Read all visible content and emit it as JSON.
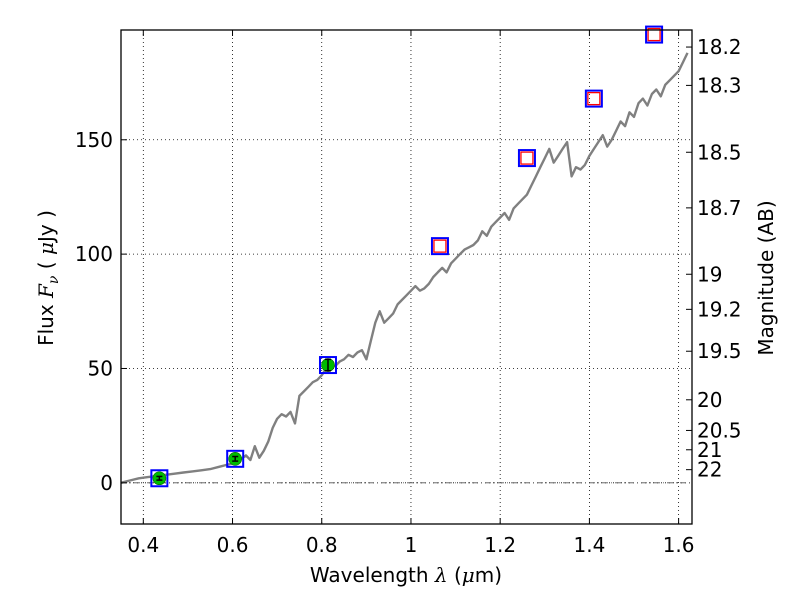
{
  "chart_data": {
    "type": "line",
    "title": "",
    "xlabel": "Wavelength  λ (μm)",
    "xlabel_parts": {
      "prefix": "Wavelength  ",
      "symbol": "λ",
      "unit_open": " (",
      "unit_mu": "μ",
      "unit_rest": "m)"
    },
    "ylabel": "Flux  Fν  ( μJy )",
    "ylabel_parts": {
      "prefix": "Flux  ",
      "symbol": "F",
      "sub": "ν",
      "open": "  ( ",
      "mu": "μ",
      "rest": "Jy )"
    },
    "ylabel_right": "Magnitude (AB)",
    "xlim": [
      0.35,
      1.63
    ],
    "ylim": [
      -18,
      198
    ],
    "grid": true,
    "x_ticks": [
      0.4,
      0.6,
      0.8,
      1.0,
      1.2,
      1.4,
      1.6
    ],
    "x_tick_labels": [
      "0.4",
      "0.6",
      "0.8",
      "1",
      "1.2",
      "1.4",
      "1.6"
    ],
    "y_ticks": [
      0,
      50,
      100,
      150
    ],
    "y_tick_labels": [
      "0",
      "50",
      "100",
      "150"
    ],
    "right_ticks": [
      {
        "label": "18.2",
        "mag": 18.2
      },
      {
        "label": "18.3",
        "mag": 18.3
      },
      {
        "label": "18.5",
        "mag": 18.5
      },
      {
        "label": "18.7",
        "mag": 18.7
      },
      {
        "label": "19",
        "mag": 19.0
      },
      {
        "label": "19.2",
        "mag": 19.2
      },
      {
        "label": "19.5",
        "mag": 19.5
      },
      {
        "label": "20",
        "mag": 20.0
      },
      {
        "label": "20.5",
        "mag": 20.5
      },
      {
        "label": "21",
        "mag": 21.0
      },
      {
        "label": "22",
        "mag": 22.0
      }
    ],
    "series": [
      {
        "kind": "spectrum",
        "color": "#808080",
        "x": [
          0.35,
          0.37,
          0.39,
          0.41,
          0.43,
          0.45,
          0.47,
          0.49,
          0.51,
          0.53,
          0.55,
          0.57,
          0.59,
          0.61,
          0.63,
          0.64,
          0.65,
          0.66,
          0.67,
          0.68,
          0.69,
          0.7,
          0.71,
          0.72,
          0.73,
          0.74,
          0.75,
          0.76,
          0.77,
          0.78,
          0.79,
          0.8,
          0.81,
          0.82,
          0.83,
          0.84,
          0.85,
          0.86,
          0.87,
          0.88,
          0.89,
          0.9,
          0.91,
          0.92,
          0.93,
          0.94,
          0.95,
          0.96,
          0.97,
          0.98,
          0.99,
          1.0,
          1.01,
          1.02,
          1.03,
          1.04,
          1.05,
          1.06,
          1.07,
          1.08,
          1.09,
          1.1,
          1.11,
          1.12,
          1.13,
          1.14,
          1.15,
          1.16,
          1.17,
          1.18,
          1.19,
          1.2,
          1.21,
          1.22,
          1.23,
          1.24,
          1.25,
          1.26,
          1.27,
          1.28,
          1.29,
          1.3,
          1.31,
          1.32,
          1.33,
          1.34,
          1.35,
          1.36,
          1.37,
          1.38,
          1.39,
          1.4,
          1.41,
          1.42,
          1.43,
          1.44,
          1.45,
          1.46,
          1.47,
          1.48,
          1.49,
          1.5,
          1.51,
          1.52,
          1.53,
          1.54,
          1.55,
          1.56,
          1.57,
          1.58,
          1.59,
          1.6,
          1.61,
          1.62
        ],
        "y": [
          0,
          1,
          2,
          2.5,
          3,
          3.5,
          4,
          4.5,
          5,
          5.5,
          6,
          7,
          8,
          9,
          12,
          10,
          16,
          11,
          14,
          18,
          24,
          28,
          30,
          29,
          31,
          26,
          38,
          40,
          42,
          44,
          45,
          47,
          50,
          52,
          51,
          53,
          54,
          56,
          55,
          57,
          58,
          54,
          62,
          70,
          75,
          70,
          72,
          74,
          78,
          80,
          82,
          84,
          86,
          84,
          85,
          87,
          90,
          92,
          94,
          92,
          96,
          98,
          100,
          102,
          103,
          104,
          106,
          110,
          108,
          112,
          114,
          116,
          118,
          115,
          120,
          122,
          124,
          126,
          130,
          134,
          138,
          142,
          146,
          140,
          143,
          146,
          149,
          134,
          138,
          137,
          139,
          143,
          146,
          149,
          152,
          147,
          150,
          154,
          158,
          156,
          162,
          160,
          166,
          168,
          165,
          170,
          172,
          169,
          174,
          176,
          178,
          180,
          184,
          188
        ]
      },
      {
        "kind": "photometry_squares",
        "edge": "#0000ff",
        "x": [
          0.436,
          0.606,
          0.814,
          1.065,
          1.26,
          1.41,
          1.545
        ],
        "y": [
          2,
          10.5,
          51.5,
          103.5,
          142,
          168,
          196
        ]
      },
      {
        "kind": "red_open_squares",
        "edge": "#ff0000",
        "x": [
          1.065,
          1.26,
          1.41,
          1.545
        ],
        "y": [
          103.5,
          142,
          168,
          196
        ]
      },
      {
        "kind": "green_circles_with_errorbars",
        "color": "#00bb00",
        "x": [
          0.436,
          0.606,
          0.814
        ],
        "y": [
          2,
          10.5,
          51.5
        ],
        "yerr": [
          0.8,
          1.0,
          2.5
        ]
      }
    ]
  }
}
